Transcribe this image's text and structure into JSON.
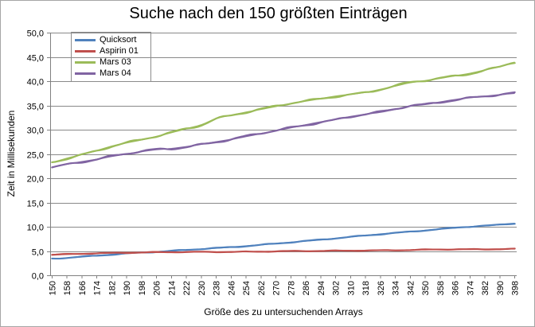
{
  "chart_data": {
    "type": "line",
    "title": "Suche nach den 150 größten Einträgen",
    "xlabel": "Größe des zu untersuchenden Arrays",
    "ylabel": "Zeit in Millisekunden",
    "ylim": [
      0,
      50
    ],
    "ytick_step": 5,
    "ytick_labels": [
      "0,0",
      "5,0",
      "10,0",
      "15,0",
      "20,0",
      "25,0",
      "30,0",
      "35,0",
      "40,0",
      "45,0",
      "50,0"
    ],
    "x_start": 150,
    "x_end": 398,
    "x_step": 2,
    "xtick_every": 4,
    "xtick_labels": [
      "150",
      "158",
      "166",
      "174",
      "182",
      "190",
      "198",
      "206",
      "214",
      "222",
      "230",
      "238",
      "246",
      "254",
      "262",
      "270",
      "278",
      "286",
      "294",
      "302",
      "310",
      "318",
      "326",
      "334",
      "342",
      "350",
      "358",
      "366",
      "374",
      "382",
      "390",
      "398"
    ],
    "grid": "horizontal",
    "gridline_color": "#898989",
    "axis_color": "#808080",
    "legend_position": "top-left",
    "has_trendlines": true,
    "series": [
      {
        "name": "Quicksort",
        "color": "#4F81BD",
        "noise": 0.13,
        "seed": 1,
        "anchors": [
          [
            150,
            3.4
          ],
          [
            166,
            3.8
          ],
          [
            182,
            4.3
          ],
          [
            198,
            4.7
          ],
          [
            214,
            5.0
          ],
          [
            230,
            5.4
          ],
          [
            246,
            5.8
          ],
          [
            262,
            6.3
          ],
          [
            278,
            6.8
          ],
          [
            294,
            7.3
          ],
          [
            310,
            7.9
          ],
          [
            326,
            8.5
          ],
          [
            342,
            9.0
          ],
          [
            358,
            9.5
          ],
          [
            374,
            10.0
          ],
          [
            386,
            10.3
          ],
          [
            398,
            10.7
          ]
        ]
      },
      {
        "name": "Aspirin 01",
        "color": "#C0504D",
        "noise": 0.11,
        "seed": 2,
        "anchors": [
          [
            150,
            4.2
          ],
          [
            162,
            4.4
          ],
          [
            174,
            4.55
          ],
          [
            186,
            4.65
          ],
          [
            198,
            4.7
          ],
          [
            214,
            4.75
          ],
          [
            230,
            4.8
          ],
          [
            246,
            4.85
          ],
          [
            262,
            4.9
          ],
          [
            278,
            4.95
          ],
          [
            294,
            5.0
          ],
          [
            310,
            5.1
          ],
          [
            326,
            5.15
          ],
          [
            342,
            5.2
          ],
          [
            358,
            5.3
          ],
          [
            374,
            5.35
          ],
          [
            386,
            5.4
          ],
          [
            398,
            5.45
          ]
        ]
      },
      {
        "name": "Mars 03",
        "color": "#9BBB59",
        "noise": 0.27,
        "seed": 3,
        "anchors": [
          [
            150,
            23.3
          ],
          [
            158,
            24.1
          ],
          [
            166,
            24.9
          ],
          [
            174,
            25.7
          ],
          [
            182,
            26.6
          ],
          [
            190,
            27.3
          ],
          [
            198,
            27.9
          ],
          [
            206,
            28.6
          ],
          [
            214,
            29.4
          ],
          [
            222,
            30.2
          ],
          [
            230,
            31.0
          ],
          [
            238,
            32.3
          ],
          [
            246,
            33.0
          ],
          [
            254,
            33.6
          ],
          [
            262,
            34.2
          ],
          [
            270,
            34.8
          ],
          [
            278,
            35.4
          ],
          [
            286,
            35.9
          ],
          [
            294,
            36.4
          ],
          [
            302,
            36.9
          ],
          [
            310,
            37.3
          ],
          [
            318,
            37.7
          ],
          [
            326,
            38.3
          ],
          [
            334,
            39.0
          ],
          [
            342,
            39.7
          ],
          [
            350,
            40.1
          ],
          [
            358,
            40.6
          ],
          [
            366,
            41.1
          ],
          [
            374,
            41.6
          ],
          [
            382,
            42.3
          ],
          [
            390,
            43.0
          ],
          [
            398,
            43.9
          ]
        ]
      },
      {
        "name": "Mars 04",
        "color": "#8064A2",
        "noise": 0.28,
        "seed": 4,
        "anchors": [
          [
            150,
            22.3
          ],
          [
            158,
            22.9
          ],
          [
            166,
            23.4
          ],
          [
            174,
            23.9
          ],
          [
            182,
            24.5
          ],
          [
            190,
            25.0
          ],
          [
            198,
            25.5
          ],
          [
            206,
            25.9
          ],
          [
            214,
            26.1
          ],
          [
            222,
            26.5
          ],
          [
            230,
            27.0
          ],
          [
            238,
            27.5
          ],
          [
            246,
            28.0
          ],
          [
            254,
            28.6
          ],
          [
            262,
            29.2
          ],
          [
            270,
            29.8
          ],
          [
            278,
            30.4
          ],
          [
            286,
            31.0
          ],
          [
            294,
            31.6
          ],
          [
            302,
            32.1
          ],
          [
            310,
            32.7
          ],
          [
            318,
            33.2
          ],
          [
            326,
            33.6
          ],
          [
            334,
            34.2
          ],
          [
            342,
            34.9
          ],
          [
            350,
            35.2
          ],
          [
            358,
            35.7
          ],
          [
            366,
            36.2
          ],
          [
            374,
            36.6
          ],
          [
            382,
            36.9
          ],
          [
            390,
            37.2
          ],
          [
            398,
            37.5
          ]
        ]
      }
    ]
  }
}
